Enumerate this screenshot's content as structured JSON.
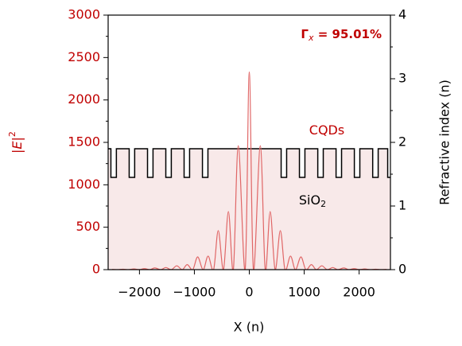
{
  "chart_data": {
    "type": "line",
    "x_label": "X (n)",
    "y_label": [
      "|",
      "E",
      "|",
      "2"
    ],
    "y2_label": "Refractive index (n)",
    "xlim": [
      -2570,
      2570
    ],
    "xticks": [
      {
        "value": -2000,
        "label": "−2000"
      },
      {
        "value": -1000,
        "label": "−1000"
      },
      0,
      1000,
      2000
    ],
    "ylim": [
      0,
      3000
    ],
    "yticks": [
      0,
      500,
      1000,
      1500,
      2000,
      2500,
      3000
    ],
    "y_minor_ticks": [
      250,
      750,
      1250,
      1750,
      2250,
      2750
    ],
    "y2lim": [
      0,
      4
    ],
    "y2ticks": [
      0,
      1,
      2,
      3,
      4
    ],
    "y2_minor_ticks": [
      0.5,
      1.5,
      2.5,
      3.5
    ],
    "y_axis_color": "#c00000",
    "series": [
      {
        "color": "#e06666",
        "x": [
          -2500,
          -2400,
          -2300,
          -2200,
          -2100,
          -2000,
          -1910,
          -1810,
          -1720,
          -1610,
          -1520,
          -1420,
          -1320,
          -1220,
          -1130,
          -1030,
          -940,
          -840,
          -750,
          -650,
          -565,
          -470,
          -380,
          -290,
          -200,
          -75,
          0,
          75,
          200,
          290,
          380,
          470,
          565,
          650,
          750,
          840,
          940,
          1030,
          1130,
          1220,
          1320,
          1420,
          1520,
          1610,
          1720,
          1810,
          1910,
          2000,
          2100,
          2200,
          2300,
          2400,
          2500
        ],
        "values": [
          3,
          0,
          5,
          0,
          8,
          0,
          12,
          0,
          20,
          0,
          25,
          0,
          45,
          0,
          60,
          0,
          150,
          0,
          160,
          0,
          460,
          0,
          685,
          0,
          1460,
          0,
          2330,
          0,
          1460,
          0,
          685,
          0,
          460,
          0,
          160,
          0,
          150,
          0,
          60,
          0,
          45,
          0,
          25,
          0,
          20,
          0,
          12,
          0,
          8,
          0,
          5,
          0,
          3
        ]
      },
      {
        "color": "#000000",
        "fill": "#f8e9e9",
        "axis": "y2",
        "x": [
          -2570,
          -2520,
          -2520,
          -2420,
          -2420,
          -2187,
          -2187,
          -2087,
          -2087,
          -1853,
          -1853,
          -1753,
          -1753,
          -1520,
          -1520,
          -1420,
          -1420,
          -1187,
          -1187,
          -1087,
          -1087,
          -853,
          -853,
          -753,
          -753,
          580,
          580,
          680,
          680,
          913,
          913,
          1013,
          1013,
          1247,
          1247,
          1347,
          1347,
          1580,
          1580,
          1680,
          1680,
          1913,
          1913,
          2013,
          2013,
          2247,
          2247,
          2347,
          2347,
          2520,
          2520,
          2570
        ],
        "values": [
          1.9,
          1.9,
          1.45,
          1.45,
          1.9,
          1.9,
          1.45,
          1.45,
          1.9,
          1.9,
          1.45,
          1.45,
          1.9,
          1.9,
          1.45,
          1.45,
          1.9,
          1.9,
          1.45,
          1.45,
          1.9,
          1.9,
          1.45,
          1.45,
          1.9,
          1.9,
          1.45,
          1.45,
          1.9,
          1.9,
          1.45,
          1.45,
          1.9,
          1.9,
          1.45,
          1.45,
          1.9,
          1.9,
          1.45,
          1.45,
          1.9,
          1.9,
          1.45,
          1.45,
          1.9,
          1.9,
          1.45,
          1.45,
          1.9,
          1.9,
          1.45,
          1.45
        ]
      }
    ],
    "annotations": [
      {
        "parts": [
          "Γ",
          "x",
          " = 95.01%"
        ],
        "color": "#c00000"
      },
      {
        "parts": [
          "CQDs"
        ],
        "color": "#c00000"
      },
      {
        "parts": [
          "SiO",
          "2"
        ],
        "color": "#000000"
      }
    ]
  }
}
